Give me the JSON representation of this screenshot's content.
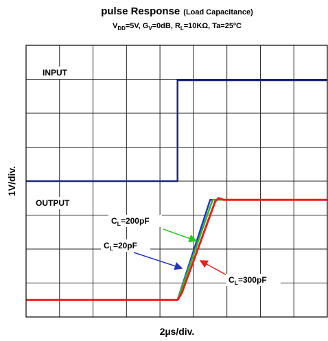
{
  "chart_data": {
    "type": "line",
    "title": "pulse Response",
    "title_note": "(Load Capacitance)",
    "subtitle": [
      "V",
      "DD",
      "=5V, G",
      "V",
      "=0dB, R",
      "L",
      "=10KΩ, Ta=25ºC"
    ],
    "x_label": "2µs/div.",
    "y_label": "1V/div.",
    "xlim": [
      0,
      18
    ],
    "ylim": [
      0,
      8
    ],
    "xticks": [
      0,
      2,
      4,
      6,
      8,
      10,
      12,
      14,
      16,
      18
    ],
    "yticks": [
      0,
      1,
      2,
      3,
      4,
      5,
      6,
      7,
      8
    ],
    "grid": true,
    "series": [
      {
        "color": "#2034c8",
        "x": [
          0,
          9.05,
          11.0,
          18
        ],
        "values": [
          0.5,
          0.5,
          3.45,
          3.45
        ]
      },
      {
        "color": "#22bb22",
        "x": [
          0,
          9.05,
          11.15,
          18
        ],
        "values": [
          0.5,
          0.5,
          3.45,
          3.45
        ]
      },
      {
        "color": "#1a2580",
        "x": [
          0,
          9.05,
          9.05,
          18
        ],
        "values": [
          4,
          4,
          6.97,
          6.97
        ]
      },
      {
        "color": "#ee1c1c",
        "x": [
          0,
          9.05,
          9.3,
          11.3,
          11.5,
          11.8,
          18
        ],
        "values": [
          0.5,
          0.5,
          0.7,
          3.4,
          3.5,
          3.45,
          3.45
        ]
      }
    ],
    "annotations": [
      {
        "text": [
          "INPUT"
        ]
      },
      {
        "text": [
          "OUTPUT"
        ]
      },
      {
        "text": [
          "C",
          "L",
          "=200pF"
        ]
      },
      {
        "text": [
          "C",
          "L",
          "=20pF"
        ]
      },
      {
        "text": [
          "C",
          "L",
          "=300pF"
        ]
      }
    ]
  }
}
